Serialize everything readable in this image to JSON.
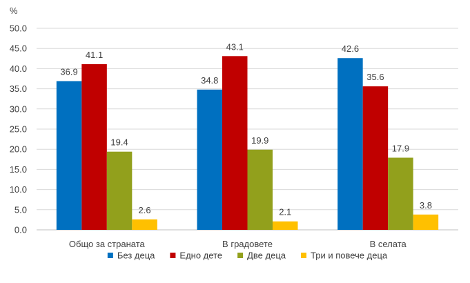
{
  "chart_data": {
    "type": "bar",
    "title": "",
    "ylabel": "%",
    "xlabel": "",
    "ylim": [
      0,
      50
    ],
    "ytick_step": 5,
    "ytick_labels": [
      "0.0",
      "5.0",
      "10.0",
      "15.0",
      "20.0",
      "25.0",
      "30.0",
      "35.0",
      "40.0",
      "45.0",
      "50.0"
    ],
    "categories": [
      "Общо за страната",
      "В градовете",
      "В селата"
    ],
    "series": [
      {
        "name": "Без деца",
        "color": "#0070C0",
        "values": [
          36.9,
          34.8,
          42.6
        ],
        "labels": [
          "36.9",
          "34.8",
          "42.6"
        ]
      },
      {
        "name": "Едно дете",
        "color": "#C00000",
        "values": [
          41.1,
          43.1,
          35.6
        ],
        "labels": [
          "41.1",
          "43.1",
          "35.6"
        ]
      },
      {
        "name": "Две деца",
        "color": "#92A01C",
        "values": [
          19.4,
          19.9,
          17.9
        ],
        "labels": [
          "19.4",
          "19.9",
          "17.9"
        ]
      },
      {
        "name": "Три и повече деца",
        "color": "#FFC000",
        "values": [
          2.6,
          2.1,
          3.8
        ],
        "labels": [
          "2.6",
          "2.1",
          "3.8"
        ]
      }
    ],
    "grid": true,
    "legend": "bottom"
  }
}
